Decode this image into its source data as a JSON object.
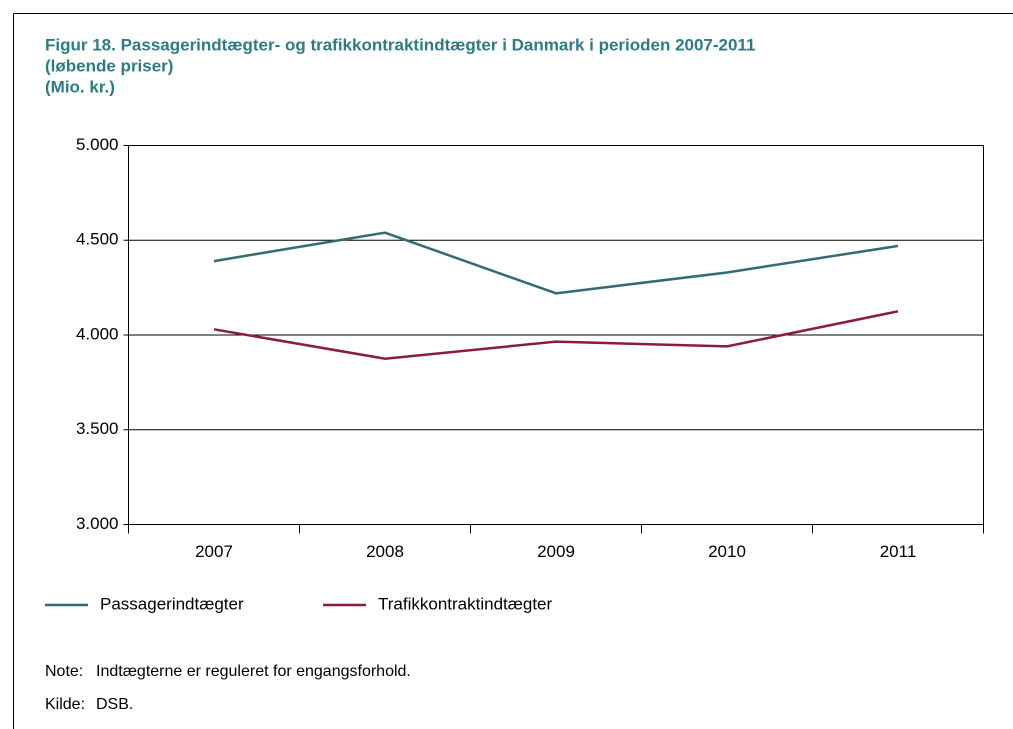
{
  "chart_data": {
    "type": "line",
    "title": [
      "Figur 18. Passagerindtægter- og trafikkontraktindtægter i Danmark i perioden 2007-2011",
      "(løbende priser)",
      "(Mio. kr.)"
    ],
    "categories": [
      "2007",
      "2008",
      "2009",
      "2010",
      "2011"
    ],
    "series": [
      {
        "name": "Passagerindtægter",
        "color": "#336b72",
        "values": [
          4390,
          4540,
          4220,
          4330,
          4470
        ]
      },
      {
        "name": "Trafikkontraktindtægter",
        "color": "#8b1a46",
        "values": [
          4030,
          3875,
          3965,
          3940,
          4125
        ]
      }
    ],
    "ylim": [
      3000,
      5000
    ],
    "yticks": [
      {
        "value": 3000,
        "label": "3.000"
      },
      {
        "value": 3500,
        "label": "3.500"
      },
      {
        "value": 4000,
        "label": "4.000"
      },
      {
        "value": 4500,
        "label": "4.500"
      },
      {
        "value": 5000,
        "label": "5.000"
      }
    ],
    "grid": true,
    "legend": "bottom",
    "note_label": "Note:",
    "note": "Indtægterne er reguleret for engangsforhold.",
    "source_label": "Kilde:",
    "source": "DSB."
  }
}
